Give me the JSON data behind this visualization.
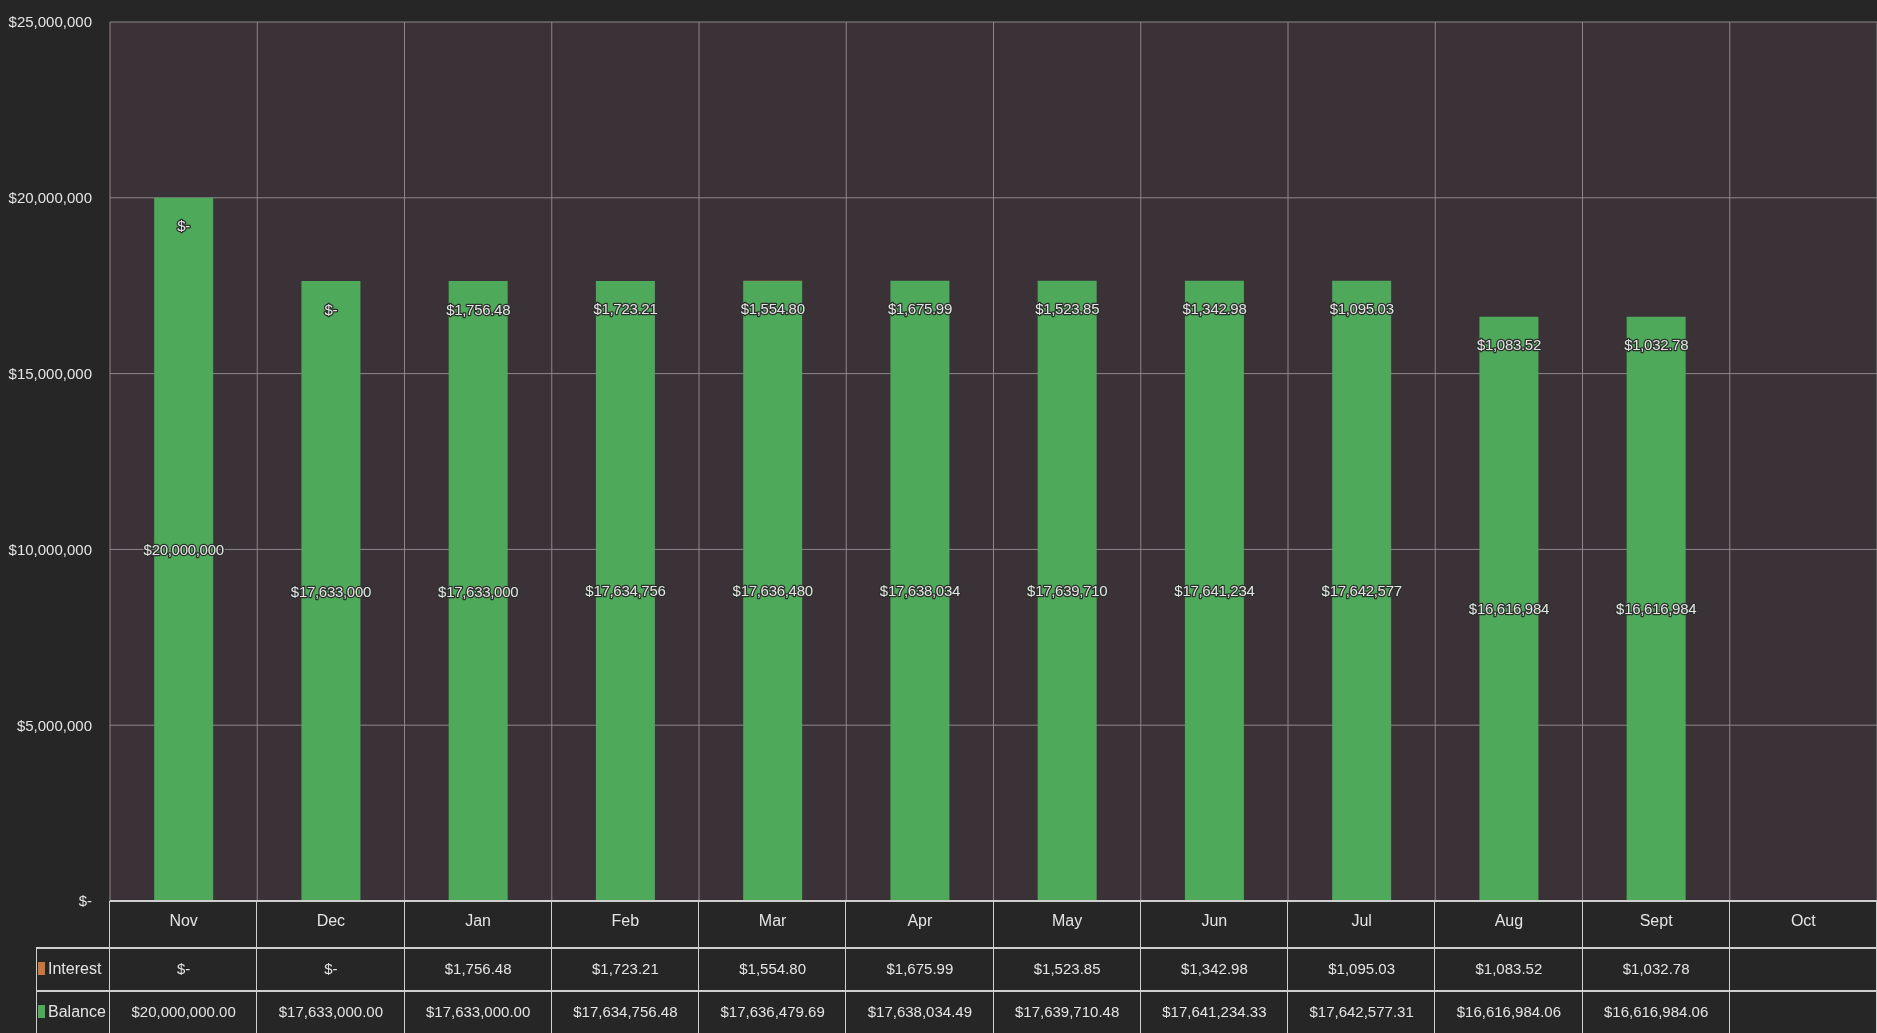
{
  "chart_data": {
    "type": "bar",
    "stacked": true,
    "categories": [
      "Nov",
      "Dec",
      "Jan",
      "Feb",
      "Mar",
      "Apr",
      "May",
      "Jun",
      "Jul",
      "Aug",
      "Sept",
      "Oct"
    ],
    "series": [
      {
        "name": "Balance",
        "color": "#4fa95a",
        "values": [
          20000000,
          17633000,
          17633000,
          17634756.48,
          17636479.69,
          17638034.49,
          17639710.48,
          17641234.33,
          17642577.31,
          16616984.06,
          16616984.06,
          null
        ],
        "value_labels": [
          "$20,000,000",
          "$17,633,000",
          "$17,633,000",
          "$17,634,756",
          "$17,636,480",
          "$17,638,034",
          "$17,639,710",
          "$17,641,234",
          "$17,642,577",
          "$16,616,984",
          "$16,616,984",
          null
        ]
      },
      {
        "name": "Interest",
        "color": "#c8783c",
        "values": [
          0,
          0,
          1756.48,
          1723.21,
          1554.8,
          1675.99,
          1523.85,
          1342.98,
          1095.03,
          1083.52,
          1032.78,
          null
        ],
        "value_labels": [
          "$-",
          "$-",
          "$1,756.48",
          "$1,723.21",
          "$1,554.80",
          "$1,675.99",
          "$1,523.85",
          "$1,342.98",
          "$1,095.03",
          "$1,083.52",
          "$1,032.78",
          null
        ]
      }
    ],
    "ylim": [
      0,
      25000000
    ],
    "yticks": [
      {
        "value": 0,
        "label": "$-"
      },
      {
        "value": 5000000,
        "label": "$5,000,000"
      },
      {
        "value": 10000000,
        "label": "$10,000,000"
      },
      {
        "value": 15000000,
        "label": "$15,000,000"
      },
      {
        "value": 20000000,
        "label": "$20,000,000"
      },
      {
        "value": 25000000,
        "label": "$25,000,000"
      }
    ],
    "grid": true,
    "legend": "bottom",
    "annotations": [
      "$-",
      "$-",
      "$1,756.48",
      "$1,723.21",
      "$1,554.80",
      "$1,675.99",
      "$1,523.85",
      "$1,342.98",
      "$1,095.03",
      "$1,083.52",
      "$1,032.78",
      "$20,000,000.00",
      "$17,633,000.00",
      "$17,633,000.00",
      "$17,634,756.48",
      "$17,636,479.69",
      "$17,638,034.49",
      "$17,639,710.48",
      "$17,641,234.33",
      "$17,642,577.31",
      "$16,616,984.06",
      "$16,616,984.06"
    ]
  }
}
